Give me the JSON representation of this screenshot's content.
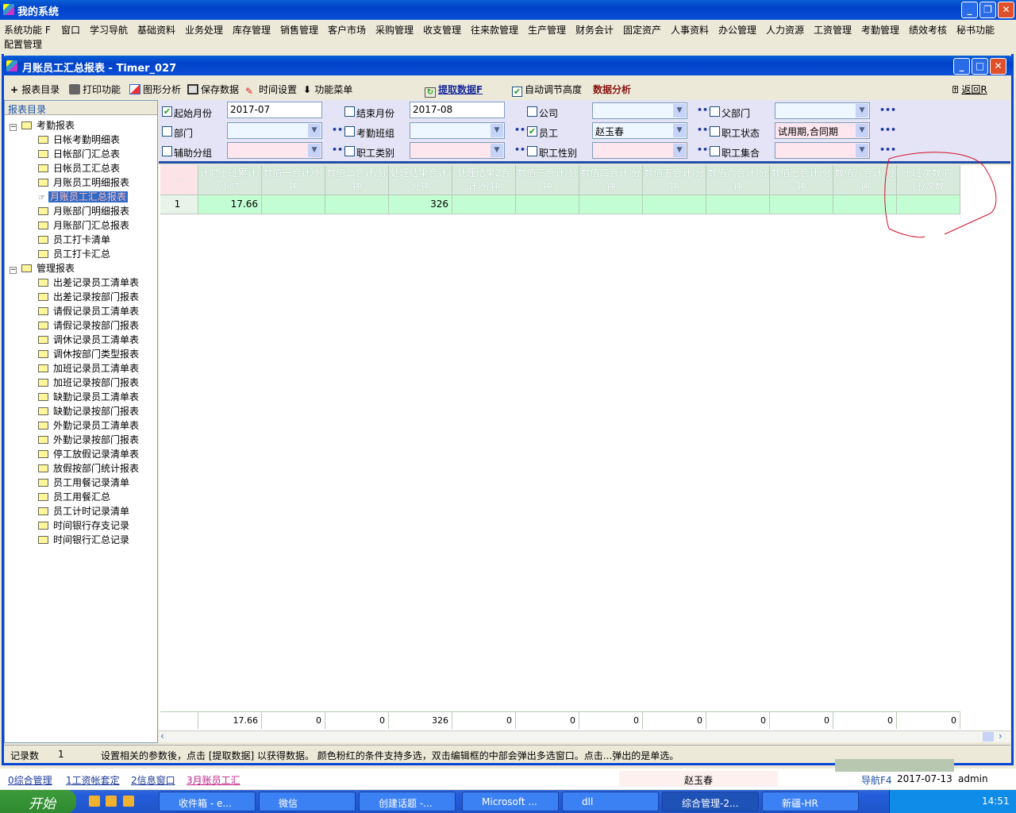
{
  "app": {
    "title": "我的系统"
  },
  "menu": [
    "系统功能 F",
    "窗口",
    "学习导航",
    "基础资料",
    "业务处理",
    "库存管理",
    "销售管理",
    "客户市场",
    "采购管理",
    "收支管理",
    "往来款管理",
    "生产管理",
    "财务会计",
    "固定资产",
    "人事资料",
    "办公管理",
    "人力资源",
    "工资管理",
    "考勤管理",
    "绩效考核",
    "秘书功能"
  ],
  "menu2": "配置管理",
  "child": {
    "title": "月账员工汇总报表 - Timer_027"
  },
  "toolbar": {
    "report_dir": "报表目录",
    "print": "打印功能",
    "chart": "图形分析",
    "save": "保存数据",
    "time": "时间设置",
    "func_menu": "功能菜单",
    "fetch": "提取数据F",
    "auto_height": "自动调节高度",
    "auto_height_checked": true,
    "analysis": "数据分析",
    "back": "返回R"
  },
  "sidebar": {
    "header": "报表目录",
    "groups": [
      {
        "label": "考勤报表",
        "items": [
          "日帐考勤明细表",
          "日帐部门汇总表",
          "日帐员工汇总表",
          "月账员工明细报表",
          "月账员工汇总报表",
          "月账部门明细报表",
          "月账部门汇总报表",
          "员工打卡清单",
          "员工打卡汇总"
        ]
      },
      {
        "label": "管理报表",
        "items": [
          "出差记录员工清单表",
          "出差记录按部门报表",
          "请假记录员工清单表",
          "请假记录按部门报表",
          "调休记录员工清单表",
          "调休按部门类型报表",
          "加班记录员工清单表",
          "加班记录按部门报表",
          "缺勤记录员工清单表",
          "缺勤记录按部门报表",
          "外勤记录员工清单表",
          "外勤记录按部门报表",
          "停工放假记录清单表",
          "放假按部门统计报表",
          "员工用餐记录清单",
          "员工用餐汇总",
          "员工计时记录清单",
          "时间银行存支记录",
          "时间银行汇总记录"
        ]
      }
    ],
    "selected": "月账员工汇总报表"
  },
  "filters": [
    {
      "label": "起始月份",
      "checked": true,
      "value": "2017-07",
      "type": "text"
    },
    {
      "label": "结束月份",
      "checked": false,
      "value": "2017-08",
      "type": "text"
    },
    {
      "label": "公司",
      "checked": false,
      "value": "",
      "type": "blue"
    },
    {
      "label": "父部门",
      "checked": false,
      "value": "",
      "type": "blue"
    },
    {
      "label": "部门",
      "checked": false,
      "value": "",
      "type": "blue"
    },
    {
      "label": "考勤班组",
      "checked": false,
      "value": "",
      "type": "blue"
    },
    {
      "label": "员工",
      "checked": true,
      "value": "赵玉春",
      "type": "blue"
    },
    {
      "label": "职工状态",
      "checked": false,
      "value": "试用期,合同期",
      "type": "pink"
    },
    {
      "label": "辅助分组",
      "checked": false,
      "value": "",
      "type": "pink"
    },
    {
      "label": "职工类别",
      "checked": false,
      "value": "",
      "type": "pink"
    },
    {
      "label": "职工性别",
      "checked": false,
      "value": "",
      "type": "pink"
    },
    {
      "label": "职工集合",
      "checked": false,
      "value": "",
      "type": "pink"
    }
  ],
  "grid": {
    "indicator": "–",
    "columns": [
      "计时上班累计/小时",
      "数值一合计/分钟",
      "数值二合计/分钟",
      "处理结果合计/分钟",
      "处理结果2合计/分钟",
      "数值三合计/分钟",
      "数值四合计/分钟",
      "数值五合计/分钟",
      "数值六合计/分钟",
      "数值七合计/分钟",
      "数值八合计/分钟",
      "上班次数.白班/次数"
    ],
    "rows": [
      {
        "no": "1",
        "cells": [
          "17.66",
          "",
          "",
          "326",
          "",
          "",
          "",
          "",
          "",
          "",
          "",
          ""
        ]
      }
    ],
    "totals": [
      "17.66",
      "0",
      "0",
      "326",
      "0",
      "0",
      "0",
      "0",
      "0",
      "0",
      "0",
      "0"
    ]
  },
  "status": {
    "label": "记录数",
    "count": "1",
    "hint": "设置相关的参数後，点击 [提取数据] 以获得数据。 颜色粉红的条件支持多选，双击编辑框的中部会弹出多选窗口。点击...弹出的是单选。"
  },
  "wintabs": [
    "0综合管理",
    "1工资帐套定",
    "2信息窗口",
    "3月账员工汇"
  ],
  "footer": {
    "user_name": "赵玉春",
    "nav": "导航F4",
    "date": "2017-07-13",
    "user": "admin"
  },
  "taskbar": {
    "start": "开始",
    "items": [
      "收件箱 - e...",
      "微信",
      "创建话题 -...",
      "Microsoft ...",
      "dll",
      "综合管理-2...",
      "新疆-HR"
    ],
    "active": "综合管理-2...",
    "clock": "14:51"
  }
}
